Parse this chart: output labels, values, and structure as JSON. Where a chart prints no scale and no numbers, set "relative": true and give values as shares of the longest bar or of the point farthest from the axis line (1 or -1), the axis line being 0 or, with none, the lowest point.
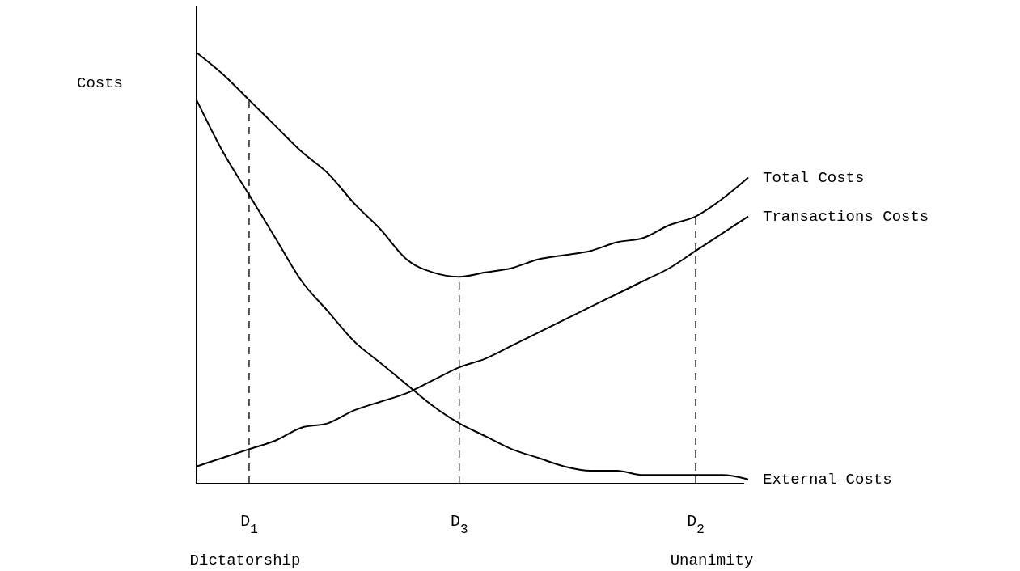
{
  "chart_data": {
    "type": "line",
    "relative": true,
    "ylabel": "Costs",
    "annotations": [
      "Dictatorship",
      "Unanimity"
    ],
    "categories": [
      null,
      null,
      "D$_{1}$",
      null,
      null,
      null,
      null,
      null,
      null,
      null,
      "D$_{3}$",
      null,
      null,
      null,
      null,
      null,
      null,
      null,
      null,
      "D$_{2}$",
      null,
      null
    ],
    "series": [
      {
        "name": "Total Costs",
        "color": "#000000",
        "values": [
          1,
          0.95,
          0.89,
          0.83,
          0.77,
          0.72,
          0.65,
          0.59,
          0.52,
          0.49,
          0.48,
          0.49,
          0.5,
          0.52,
          0.53,
          0.54,
          0.56,
          0.57,
          0.6,
          0.62,
          0.66,
          0.71
        ]
      },
      {
        "name": "Transactions Costs",
        "color": "#000000",
        "values": [
          0.04,
          0.06,
          0.08,
          0.1,
          0.13,
          0.14,
          0.17,
          0.19,
          0.21,
          0.24,
          0.27,
          0.29,
          0.32,
          0.35,
          0.38,
          0.41,
          0.44,
          0.47,
          0.5,
          0.54,
          0.58,
          0.62
        ]
      },
      {
        "name": "External Costs",
        "color": "#000000",
        "values": [
          0.89,
          0.77,
          0.67,
          0.57,
          0.47,
          0.4,
          0.33,
          0.28,
          0.23,
          0.18,
          0.14,
          0.11,
          0.08,
          0.06,
          0.04,
          0.03,
          0.03,
          0.02,
          0.02,
          0.02,
          0.02,
          0.01
        ]
      }
    ],
    "ref_lines": [
      {
        "axis": "x",
        "value": "D$_{1}$",
        "line_style": "dashed"
      },
      {
        "axis": "x",
        "value": "D$_{3}$",
        "line_style": "dashed"
      },
      {
        "axis": "x",
        "value": "D$_{2}$",
        "line_style": "dashed"
      }
    ],
    "marker": "none",
    "line_style": "solid"
  }
}
